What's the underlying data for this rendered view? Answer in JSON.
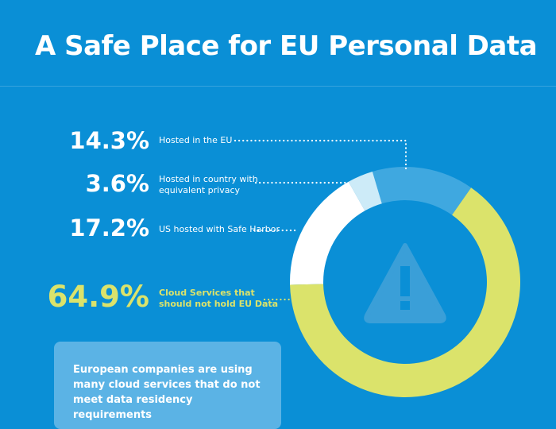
{
  "title": "A Safe Place for EU Personal Data",
  "stats": [
    {
      "percent": "14.3%",
      "label_lines": [
        "Hosted in the EU"
      ]
    },
    {
      "percent": "3.6%",
      "label_lines": [
        "Hosted in country with",
        "equivalent privacy"
      ]
    },
    {
      "percent": "17.2%",
      "label_lines": [
        "US hosted with Safe Harbor"
      ]
    },
    {
      "percent": "64.9%",
      "label_lines": [
        "Cloud Services that",
        "should not hold EU Data"
      ]
    }
  ],
  "note": "European companies are using many cloud services that do not meet data residency requirements",
  "chart_data": {
    "type": "pie",
    "title": "A Safe Place for EU Personal Data",
    "slices": [
      {
        "label": "Hosted in the EU",
        "value": 14.3,
        "color": "#3fa8e0"
      },
      {
        "label": "Hosted in country with equivalent privacy",
        "value": 3.6,
        "color": "#cdebf8"
      },
      {
        "label": "US hosted with Safe Harbor",
        "value": 17.2,
        "color": "#ffffff"
      },
      {
        "label": "Cloud Services that should not hold EU Data",
        "value": 64.9,
        "color": "#dbe36b"
      }
    ],
    "style": "donut",
    "center_icon": "warning-icon"
  },
  "colors": {
    "background": "#0a8fd6",
    "accent_yellow": "#dbe36b",
    "note_box": "#5bb3e5",
    "warning_icon": "#3a9fd8",
    "leader_dots": "#ffffff"
  }
}
